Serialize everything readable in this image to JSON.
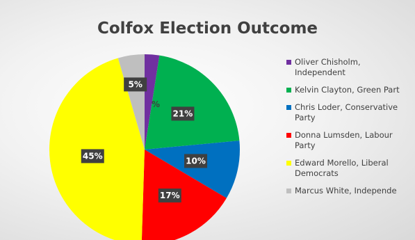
{
  "chart_data": {
    "type": "pie",
    "title": "Colfox Election Outcome",
    "slices": [
      {
        "name": "Oliver Chisholm, Independent",
        "legend": "Oliver Chisholm,\nIndependent",
        "value": 2.5,
        "label": "",
        "color": "#7030a0"
      },
      {
        "name": "Kelvin Clayton, Green Party",
        "legend": "Kelvin Clayton, Green Part",
        "value": 21,
        "label": "21%",
        "color": "#00b050"
      },
      {
        "name": "Chris Loder, Conservative Party",
        "legend": "Chris Loder,  Conservative\nParty",
        "value": 10,
        "label": "10%",
        "color": "#0070c0"
      },
      {
        "name": "Donna Lumsden, Labour Party",
        "legend": "Donna Lumsden, Labour\nParty",
        "value": 17,
        "label": "17%",
        "color": "#ff0000"
      },
      {
        "name": "Edward Morello, Liberal Democrats",
        "legend": "Edward Morello, Liberal\nDemocrats",
        "value": 45,
        "label": "45%",
        "color": "#ffff00"
      },
      {
        "name": "Marcus White, Independent",
        "legend": "Marcus White, Independe",
        "value": 4.5,
        "label": "5%",
        "color": "#bfbfbf"
      }
    ],
    "small_slice_label": "%",
    "legend_position": "right"
  }
}
